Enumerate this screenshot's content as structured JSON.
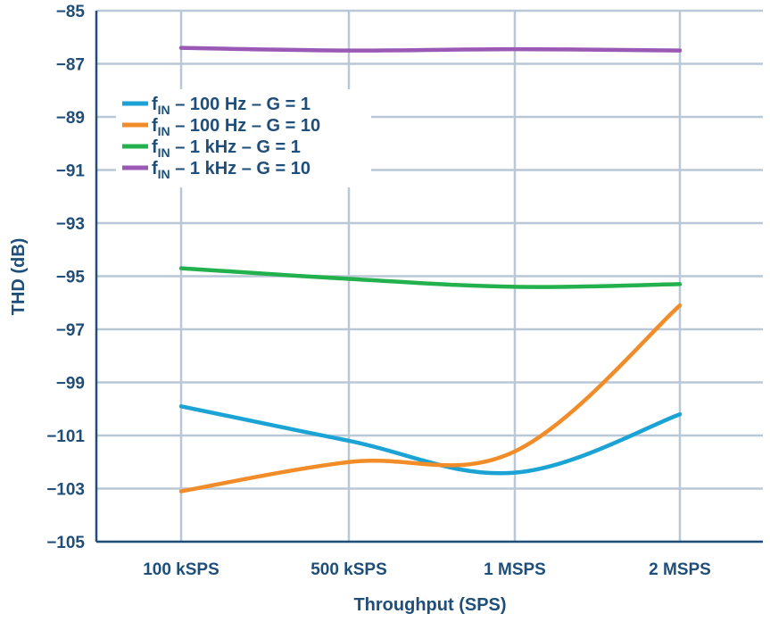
{
  "chart_data": {
    "type": "line",
    "categories": [
      "100 kSPS",
      "500 kSPS",
      "1 MSPS",
      "2 MSPS"
    ],
    "xlabel": "Throughput (SPS)",
    "ylabel": "THD (dB)",
    "ylim": [
      -105,
      -85
    ],
    "yticks": [
      "−85",
      "−87",
      "−89",
      "−91",
      "−93",
      "−95",
      "−97",
      "−99",
      "−101",
      "−103",
      "−105"
    ],
    "ytick_values": [
      -85,
      -87,
      -89,
      -91,
      -93,
      -95,
      -97,
      -99,
      -101,
      -103,
      -105
    ],
    "grid": true,
    "legend_position": "top-left",
    "series": [
      {
        "name_prefix": "f",
        "name_sub": "IN",
        "name_rest": " – 100 Hz – G = 1",
        "color": "#1aa3d4",
        "values": [
          -99.9,
          -101.2,
          -102.4,
          -100.2
        ]
      },
      {
        "name_prefix": "f",
        "name_sub": "IN",
        "name_rest": " – 100 Hz – G = 10",
        "color": "#f28c28",
        "values": [
          -103.1,
          -102.0,
          -101.6,
          -96.1
        ]
      },
      {
        "name_prefix": "f",
        "name_sub": "IN",
        "name_rest": " – 1 kHz – G = 1",
        "color": "#22b14c",
        "values": [
          -94.7,
          -95.1,
          -95.4,
          -95.3
        ]
      },
      {
        "name_prefix": "f",
        "name_sub": "IN",
        "name_rest": " – 1 kHz – G = 10",
        "color": "#9b59b6",
        "values": [
          -86.4,
          -86.5,
          -86.45,
          -86.5
        ]
      }
    ]
  },
  "colors": {
    "axis": "#1f4e79",
    "grid": "#b9c7d6",
    "text": "#1f4e79"
  }
}
